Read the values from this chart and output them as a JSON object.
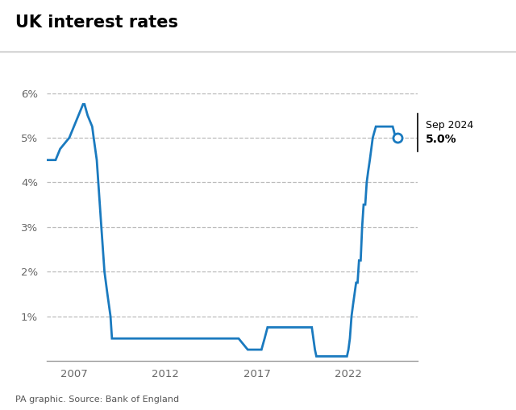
{
  "title": "UK interest rates",
  "source": "PA graphic. Source: Bank of England",
  "line_color": "#1a7abf",
  "background_color": "#ffffff",
  "annotation_label": "Sep 2024",
  "annotation_value": "5.0%",
  "ylim": [
    0,
    6.8
  ],
  "xlim": [
    2005.5,
    2025.8
  ],
  "yticks": [
    1,
    2,
    3,
    4,
    5,
    6
  ],
  "ytick_labels": [
    "1%",
    "2%",
    "3%",
    "4%",
    "5%",
    "6%"
  ],
  "xticks": [
    2007,
    2012,
    2017,
    2022
  ],
  "xtick_labels": [
    "2007",
    "2012",
    "2017",
    "2022"
  ],
  "data": [
    [
      2005.5,
      4.5
    ],
    [
      2006.0,
      4.5
    ],
    [
      2006.25,
      4.75
    ],
    [
      2006.75,
      5.0
    ],
    [
      2007.0,
      5.25
    ],
    [
      2007.25,
      5.5
    ],
    [
      2007.5,
      5.75
    ],
    [
      2007.58,
      5.75
    ],
    [
      2007.75,
      5.5
    ],
    [
      2008.0,
      5.25
    ],
    [
      2008.08,
      5.0
    ],
    [
      2008.25,
      4.5
    ],
    [
      2008.5,
      3.0
    ],
    [
      2008.67,
      2.0
    ],
    [
      2008.83,
      1.5
    ],
    [
      2009.0,
      1.0
    ],
    [
      2009.08,
      0.5
    ],
    [
      2009.25,
      0.5
    ],
    [
      2010.0,
      0.5
    ],
    [
      2011.0,
      0.5
    ],
    [
      2012.0,
      0.5
    ],
    [
      2013.0,
      0.5
    ],
    [
      2014.0,
      0.5
    ],
    [
      2015.0,
      0.5
    ],
    [
      2016.0,
      0.5
    ],
    [
      2016.5,
      0.25
    ],
    [
      2016.58,
      0.25
    ],
    [
      2017.0,
      0.25
    ],
    [
      2017.08,
      0.25
    ],
    [
      2017.25,
      0.25
    ],
    [
      2017.42,
      0.5
    ],
    [
      2017.58,
      0.75
    ],
    [
      2017.67,
      0.75
    ],
    [
      2018.0,
      0.75
    ],
    [
      2018.42,
      0.75
    ],
    [
      2018.83,
      0.75
    ],
    [
      2019.0,
      0.75
    ],
    [
      2019.5,
      0.75
    ],
    [
      2020.0,
      0.75
    ],
    [
      2020.17,
      0.25
    ],
    [
      2020.25,
      0.1
    ],
    [
      2020.5,
      0.1
    ],
    [
      2021.0,
      0.1
    ],
    [
      2021.5,
      0.1
    ],
    [
      2021.83,
      0.1
    ],
    [
      2021.92,
      0.1
    ],
    [
      2022.0,
      0.25
    ],
    [
      2022.08,
      0.5
    ],
    [
      2022.17,
      1.0
    ],
    [
      2022.25,
      1.25
    ],
    [
      2022.42,
      1.75
    ],
    [
      2022.5,
      1.75
    ],
    [
      2022.58,
      2.25
    ],
    [
      2022.67,
      2.25
    ],
    [
      2022.75,
      3.0
    ],
    [
      2022.83,
      3.5
    ],
    [
      2022.92,
      3.5
    ],
    [
      2023.0,
      4.0
    ],
    [
      2023.08,
      4.25
    ],
    [
      2023.17,
      4.5
    ],
    [
      2023.33,
      5.0
    ],
    [
      2023.5,
      5.25
    ],
    [
      2023.58,
      5.25
    ],
    [
      2023.75,
      5.25
    ],
    [
      2024.0,
      5.25
    ],
    [
      2024.42,
      5.25
    ],
    [
      2024.58,
      5.0
    ],
    [
      2024.67,
      5.0
    ]
  ]
}
